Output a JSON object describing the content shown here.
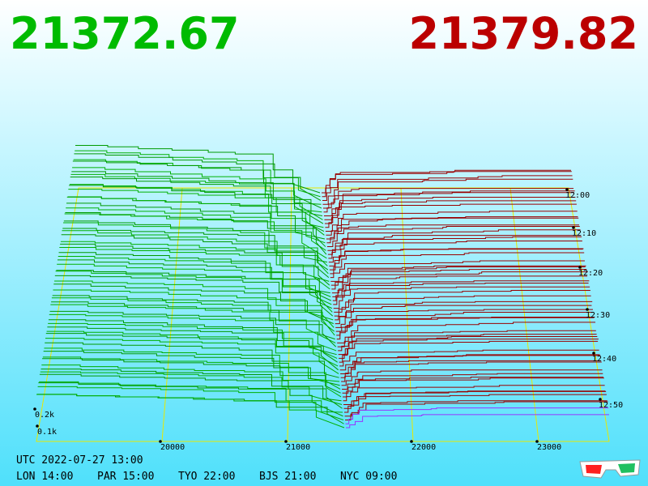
{
  "header": {
    "bid": "21372.67",
    "ask": "21379.82"
  },
  "price_axis": [
    "20000",
    "21000",
    "22000",
    "23000"
  ],
  "size_axis": [
    "0.2k",
    "0.1k"
  ],
  "time_axis": [
    "12:00",
    "12:10",
    "12:20",
    "12:30",
    "12:40",
    "12:50"
  ],
  "footer": {
    "utc": "UTC 2022-07-27 13:00",
    "zones": [
      "LON 14:00",
      "PAR 15:00",
      "TYO 22:00",
      "BJS 21:00",
      "NYC 09:00"
    ]
  }
}
